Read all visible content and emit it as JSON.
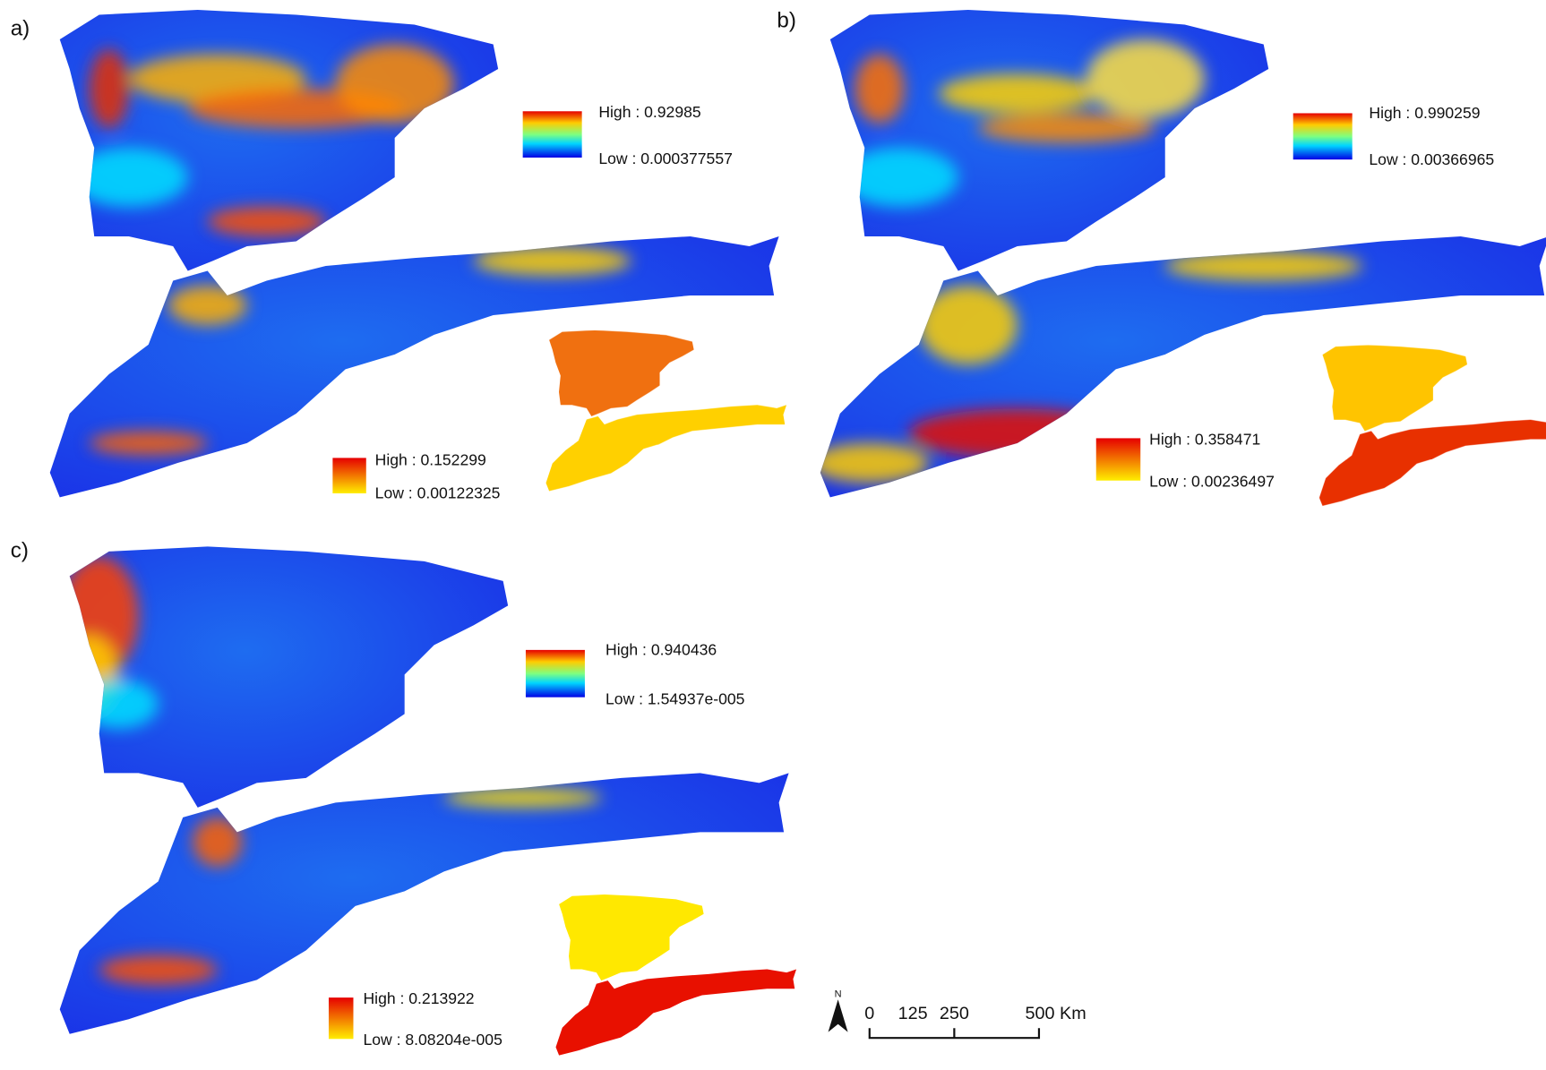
{
  "panels": [
    {
      "label": "a)",
      "legend": {
        "high": "High : 0.92985",
        "low": "Low : 0.000377557"
      },
      "inset_legend": {
        "high": "High : 0.152299",
        "low": "Low : 0.00122325"
      }
    },
    {
      "label": "b)",
      "legend": {
        "high": "High : 0.990259",
        "low": "Low : 0.00366965"
      },
      "inset_legend": {
        "high": "High : 0.358471",
        "low": "Low : 0.00236497"
      }
    },
    {
      "label": "c)",
      "legend": {
        "high": "High : 0.940436",
        "low": "Low : 1.54937e-005"
      },
      "inset_legend": {
        "high": "High : 0.213922",
        "low": "Low : 8.08204e-005"
      }
    }
  ],
  "scale_bar": {
    "north": "N",
    "labels": [
      "0",
      "125",
      "250",
      "500 Km"
    ]
  }
}
